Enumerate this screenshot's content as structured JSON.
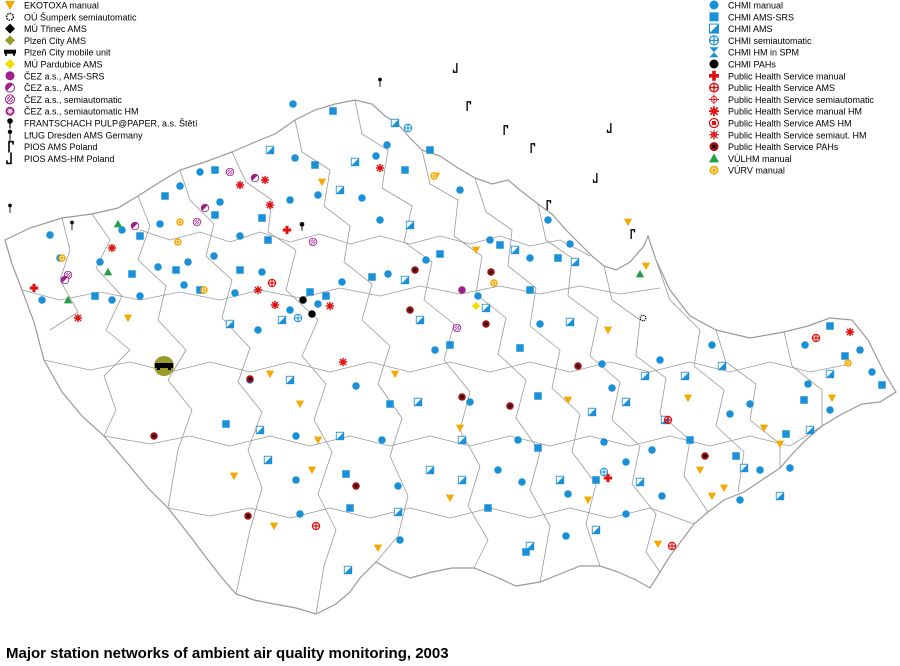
{
  "title": "Major station networks of ambient air quality monitoring, 2003",
  "legend_left": [
    {
      "label": "EKOTOXA manual",
      "icon": "triangle-down",
      "color": "#f5a800"
    },
    {
      "label": "OÚ Šumperk semiautomatic",
      "icon": "gear-outline",
      "color": "#000000"
    },
    {
      "label": "MÚ Třinec AMS",
      "icon": "diamond",
      "color": "#000000"
    },
    {
      "label": "Plzeň City AMS",
      "icon": "diamond",
      "color": "#9a9a2a"
    },
    {
      "label": "Plzeň City mobile unit",
      "icon": "mobile-unit",
      "color": "#000000"
    },
    {
      "label": "MÚ Pardubice AMS",
      "icon": "diamond",
      "color": "#f0e000"
    },
    {
      "label": "ČEZ a.s., AMS-SRS",
      "icon": "circle",
      "color": "#a0208a"
    },
    {
      "label": "ČEZ a.s., AMS",
      "icon": "circle-half",
      "color": "#a0208a"
    },
    {
      "label": "ČEZ a.s., semiautomatic",
      "icon": "circle-hatched",
      "color": "#a0208a"
    },
    {
      "label": "ČEZ a.s., semiautomatic HM",
      "icon": "circle-star",
      "color": "#a0208a"
    },
    {
      "label": "FRANTSCHACH PULP@PAPER, a.s. Štětí",
      "icon": "pin-down",
      "color": "#000000"
    },
    {
      "label": "LfUG Dresden AMS Germany",
      "icon": "pin",
      "color": "#000000"
    },
    {
      "label": "PIOS AMS Poland",
      "icon": "flag-right",
      "color": "#000000"
    },
    {
      "label": "PIOS AMS-HM Poland",
      "icon": "flag-left",
      "color": "#000000"
    }
  ],
  "legend_right": [
    {
      "label": "CHMI manual",
      "icon": "circle",
      "color": "#1a90d8"
    },
    {
      "label": "CHMI AMS-SRS",
      "icon": "square",
      "color": "#1a90d8"
    },
    {
      "label": "CHMI AMS",
      "icon": "square-half",
      "color": "#1a90d8"
    },
    {
      "label": "CHMI semiautomatic",
      "icon": "circle-cross",
      "color": "#1a90d8"
    },
    {
      "label": "CHMI HM in SPM",
      "icon": "hourglass",
      "color": "#1a90d8"
    },
    {
      "label": "CHMI PAHs",
      "icon": "circle",
      "color": "#000000"
    },
    {
      "label": "Public Health Service manual",
      "icon": "plus",
      "color": "#e01010"
    },
    {
      "label": "Public Health Service AMS",
      "icon": "circle-plus",
      "color": "#e01010"
    },
    {
      "label": "Public Health Service semiautomatic",
      "icon": "thin-plus",
      "color": "#e01010"
    },
    {
      "label": "Public Health Service manual HM",
      "icon": "asterisk",
      "color": "#e01010"
    },
    {
      "label": "Public Health Service AMS HM",
      "icon": "circle-square",
      "color": "#e01010"
    },
    {
      "label": "Public Health Service semiaut. HM",
      "icon": "asterisk-thin",
      "color": "#e01010"
    },
    {
      "label": "Public Health Service PAHs",
      "icon": "circle-dark",
      "color": "#a01010"
    },
    {
      "label": "VÚLHM manual",
      "icon": "triangle-up",
      "color": "#20a040"
    },
    {
      "label": "VÚRV manual",
      "icon": "circle-ring",
      "color": "#f5a800"
    }
  ],
  "colors": {
    "border": "#b0b0b0",
    "background": "#ffffff"
  }
}
